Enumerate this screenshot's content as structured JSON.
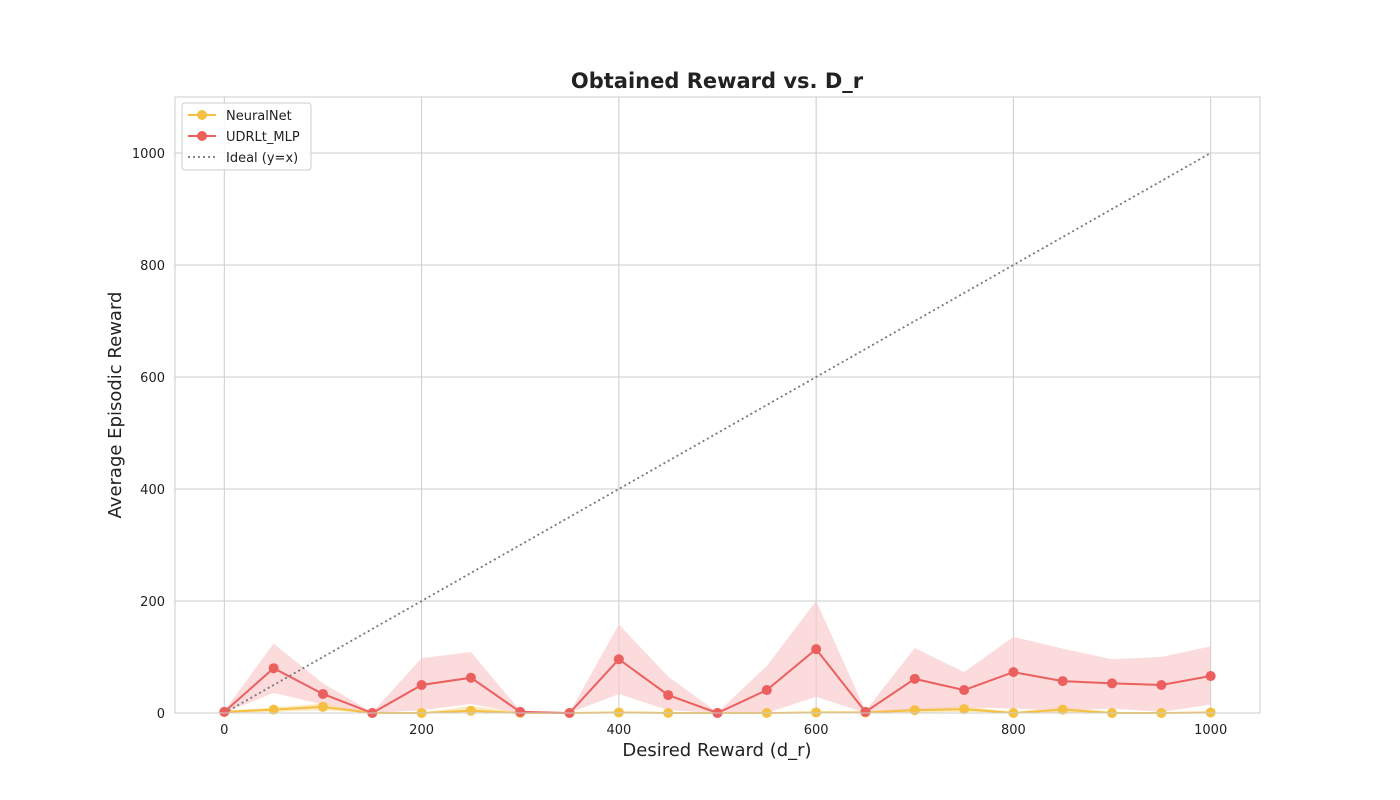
{
  "chart_data": {
    "type": "line",
    "title": "Obtained Reward vs. D_r",
    "xlabel": "Desired Reward (d_r)",
    "ylabel": "Average Episodic Reward",
    "xlim": [
      -50,
      1050
    ],
    "ylim": [
      0,
      1100
    ],
    "xticks": [
      0,
      200,
      400,
      600,
      800,
      1000
    ],
    "yticks": [
      0,
      200,
      400,
      600,
      800,
      1000
    ],
    "grid": true,
    "legend_position": "top-left",
    "x": [
      0,
      50,
      100,
      150,
      200,
      250,
      300,
      350,
      400,
      450,
      500,
      550,
      600,
      650,
      700,
      750,
      800,
      850,
      900,
      950,
      1000
    ],
    "series": [
      {
        "name": "NeuralNet",
        "color": "#f5bf42",
        "marker": "circle",
        "values": [
          2,
          6,
          11,
          0,
          0,
          4,
          0,
          0,
          1,
          0,
          0,
          0,
          1,
          1,
          5,
          7,
          0,
          6,
          0,
          0,
          1
        ],
        "band_lower": [
          0,
          2,
          5,
          0,
          0,
          1,
          0,
          0,
          0,
          0,
          0,
          0,
          0,
          0,
          1,
          2,
          0,
          1,
          0,
          0,
          0
        ],
        "band_upper": [
          4,
          10,
          17,
          2,
          1,
          12,
          2,
          1,
          3,
          2,
          1,
          1,
          3,
          3,
          9,
          12,
          2,
          11,
          2,
          1,
          3
        ]
      },
      {
        "name": "UDRLt_MLP",
        "color": "#ec5f5f",
        "band_color": "#f9c8c8",
        "marker": "circle",
        "values": [
          2,
          80,
          34,
          0,
          50,
          63,
          2,
          0,
          96,
          32,
          0,
          41,
          114,
          2,
          61,
          41,
          73,
          57,
          53,
          50,
          66
        ],
        "band_lower": [
          0,
          36,
          15,
          0,
          5,
          16,
          0,
          0,
          34,
          5,
          0,
          0,
          29,
          0,
          5,
          10,
          8,
          5,
          8,
          2,
          15
        ],
        "band_upper": [
          4,
          124,
          53,
          1,
          98,
          109,
          4,
          1,
          158,
          65,
          1,
          84,
          200,
          4,
          116,
          73,
          136,
          115,
          96,
          100,
          119
        ]
      },
      {
        "name": "Ideal (y=x)",
        "color": "#777777",
        "line_style": "dotted",
        "x": [
          0,
          1000
        ],
        "values": [
          0,
          1000
        ]
      }
    ]
  }
}
